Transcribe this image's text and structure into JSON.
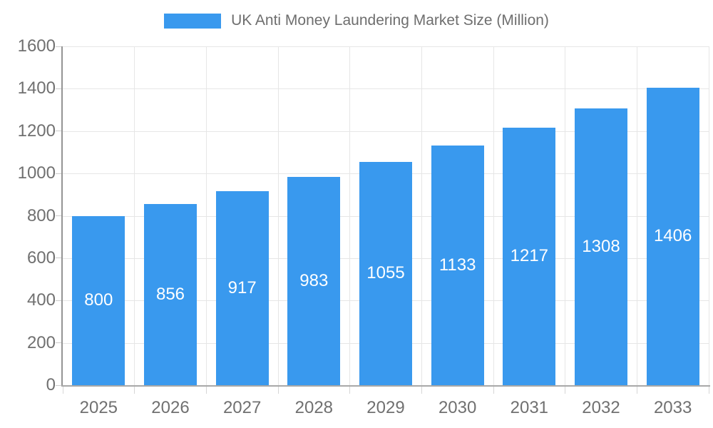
{
  "legend": {
    "label": "UK Anti Money Laundering Market Size (Million)"
  },
  "colors": {
    "bar": "#3999ee",
    "bar_label": "#ffffff",
    "gridline": "#e6e6e6",
    "axis_label": "#707070"
  },
  "chart_data": {
    "type": "bar",
    "title": "UK Anti Money Laundering Market Size (Million)",
    "categories": [
      "2025",
      "2026",
      "2027",
      "2028",
      "2029",
      "2030",
      "2031",
      "2032",
      "2033"
    ],
    "series": [
      {
        "name": "UK Anti Money Laundering Market Size (Million)",
        "values": [
          800,
          856,
          917,
          983,
          1055,
          1133,
          1217,
          1308,
          1406
        ]
      }
    ],
    "xlabel": "",
    "ylabel": "",
    "ylim": [
      0,
      1600
    ],
    "ytick_step": 200,
    "yticks": [
      0,
      200,
      400,
      600,
      800,
      1000,
      1200,
      1400,
      1600
    ],
    "grid": true,
    "legend_position": "top",
    "bar_labels_inside": true
  }
}
